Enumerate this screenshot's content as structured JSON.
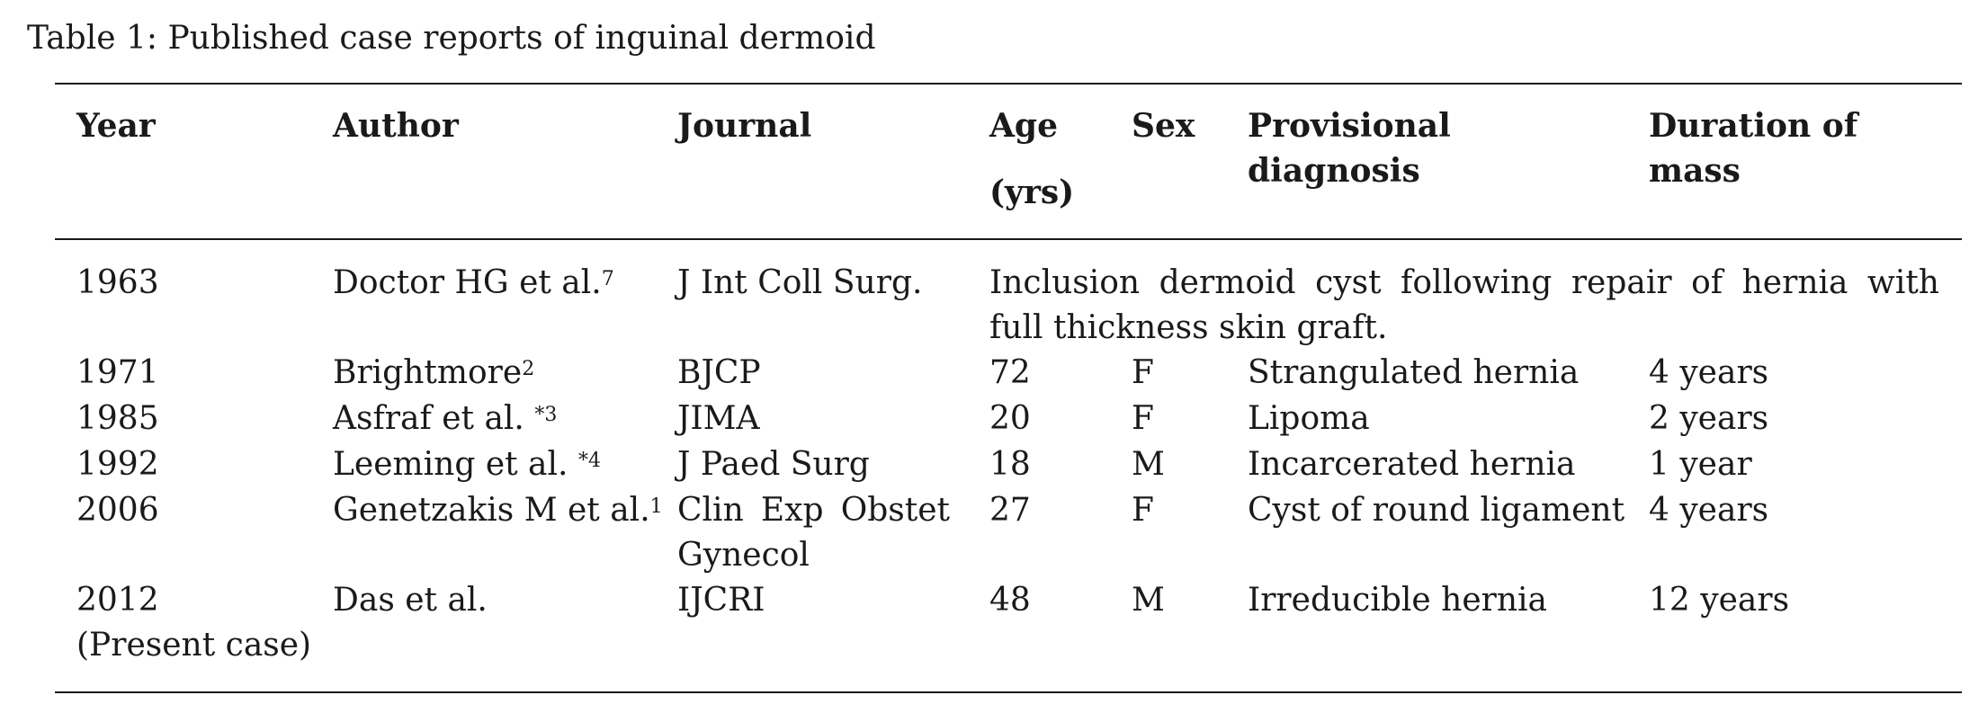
{
  "caption": "Table 1: Published case reports of inguinal dermoid",
  "headers": {
    "year": "Year",
    "author": "Author",
    "journal": "Journal",
    "age_line1": "Age",
    "age_line2": "(yrs)",
    "sex": "Sex",
    "diagnosis_line1": "Provisional",
    "diagnosis_line2": "diagnosis",
    "duration_line1": "Duration of",
    "duration_line2": "mass"
  },
  "rows": [
    {
      "year": "1963",
      "author": "Doctor HG et al.",
      "ref": "7",
      "journal": "J Int Coll Surg.",
      "note": "Inclusion dermoid cyst following repair of hernia with full thickness skin graft."
    },
    {
      "year": "1971",
      "author": "Brightmore",
      "ref": "2",
      "journal": "BJCP",
      "age": "72",
      "sex": "F",
      "diagnosis": "Strangulated hernia",
      "duration": "4 years"
    },
    {
      "year": "1985",
      "author": "Asfraf et al.",
      "ref": "*3",
      "journal": "JIMA",
      "age": "20",
      "sex": "F",
      "diagnosis": "Lipoma",
      "duration": "2 years"
    },
    {
      "year": "1992",
      "author": "Leeming et al.",
      "ref": "*4",
      "journal": "J Paed Surg",
      "age": "18",
      "sex": "M",
      "diagnosis": "Incarcerated hernia",
      "duration": "1 year"
    },
    {
      "year": "2006",
      "author": "Genetzakis M et al.",
      "ref": "1",
      "journal": "Clin Exp Obstet Gynecol",
      "age": "27",
      "sex": "F",
      "diagnosis": "Cyst of round ligament",
      "duration": "4 years"
    },
    {
      "year": "2012",
      "year_note": "(Present case)",
      "author": "Das et al.",
      "journal": "IJCRI",
      "age": "48",
      "sex": "M",
      "diagnosis": "Irreducible hernia",
      "duration": "12 years"
    }
  ]
}
